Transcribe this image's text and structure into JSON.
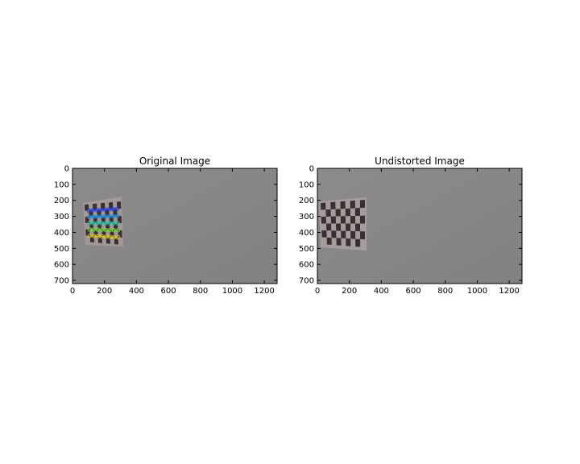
{
  "panels": [
    {
      "id": "original",
      "title": "Original Image",
      "xticks": [
        "0",
        "200",
        "400",
        "600",
        "800",
        "1000",
        "1200"
      ],
      "yticks": [
        "0",
        "100",
        "200",
        "300",
        "400",
        "500",
        "600",
        "700"
      ],
      "image_description_colors": {
        "background": "#8a8a8a",
        "board_light": "#9c9696",
        "board_dark": "#3a2f30"
      },
      "shows_detected_corners": true
    },
    {
      "id": "undistorted",
      "title": "Undistorted Image",
      "xticks": [
        "0",
        "200",
        "400",
        "600",
        "800",
        "1000",
        "1200"
      ],
      "yticks": [
        "0",
        "100",
        "200",
        "300",
        "400",
        "500",
        "600",
        "700"
      ],
      "image_description_colors": {
        "background": "#8a8a8a",
        "board_light": "#a39b9b",
        "board_dark": "#3a2f30"
      },
      "shows_detected_corners": false
    }
  ],
  "corner_row_colors": [
    "#2b3fe0",
    "#1d8fe8",
    "#2fc4a8",
    "#6fd23a",
    "#d7c32a",
    "#e0342a"
  ]
}
